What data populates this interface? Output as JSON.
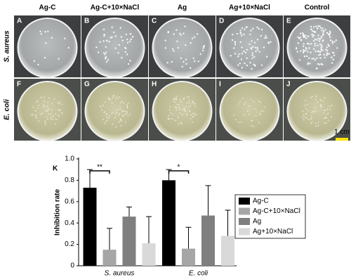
{
  "columns": [
    "Ag-C",
    "Ag-C+10×NaCl",
    "Ag",
    "Ag+10×NaCl",
    "Control"
  ],
  "rows": [
    "S. aureus",
    "E. coli"
  ],
  "panel_letters": [
    [
      "A",
      "B",
      "C",
      "D",
      "E"
    ],
    [
      "F",
      "G",
      "H",
      "I",
      "J"
    ]
  ],
  "scale_bar": "1 cm",
  "chart_panel_letter": "K",
  "chart_data": {
    "type": "bar",
    "y_label": "Inhibition rate",
    "categories": [
      "S. aureus",
      "E. coli"
    ],
    "series": [
      {
        "name": "Ag-C",
        "color": "#000000",
        "values": [
          0.73,
          0.8
        ],
        "errors": [
          0.17,
          0.1
        ]
      },
      {
        "name": "Ag-C+10×NaCl",
        "color": "#a6a6a6",
        "values": [
          0.15,
          0.16
        ],
        "errors": [
          0.2,
          0.2
        ]
      },
      {
        "name": "Ag",
        "color": "#7f7f7f",
        "values": [
          0.46,
          0.47
        ],
        "errors": [
          0.09,
          0.28
        ]
      },
      {
        "name": "Ag+10×NaCl",
        "color": "#d9d9d9",
        "values": [
          0.21,
          0.28
        ],
        "errors": [
          0.25,
          0.24
        ]
      }
    ],
    "annotations": [
      "**",
      "*"
    ],
    "ylim": [
      0,
      1
    ],
    "yticks": [
      0,
      0.2,
      0.4,
      0.6,
      0.8,
      {
        "value": 1,
        "label": "1.0"
      }
    ],
    "legend": "right"
  }
}
